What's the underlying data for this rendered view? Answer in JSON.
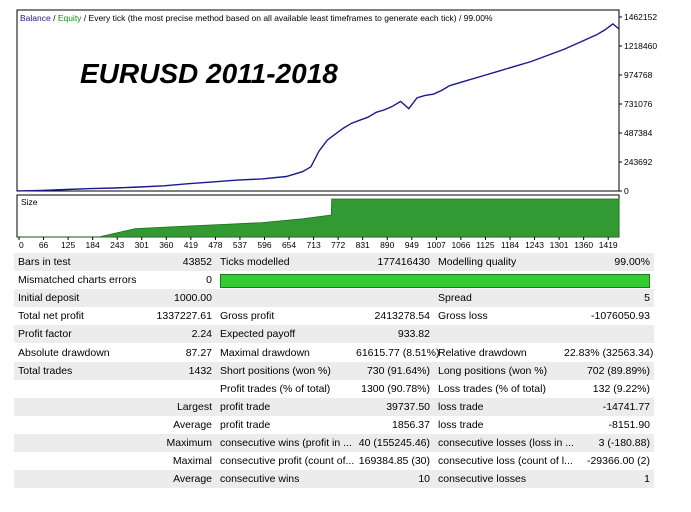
{
  "legend": {
    "balance": "Balance",
    "equity": "Equity",
    "mode": "Every tick (the most precise method based on all available least timeframes to generate each tick)",
    "quality": "99.00%"
  },
  "overlay_title": "EURUSD  2011-2018",
  "colors": {
    "balance": "#1a1a8c",
    "equity": "#1a8c1a",
    "size_fill": "#339933",
    "size_line": "#1f6f1f",
    "quality_bar": "#33cc33",
    "row_alt": "#ececec"
  },
  "chart_data": [
    {
      "type": "line",
      "name": "balance-chart",
      "series": [
        {
          "name": "Balance",
          "x": [
            0,
            60,
            120,
            180,
            240,
            300,
            360,
            420,
            480,
            540,
            600,
            660,
            700,
            720,
            740,
            760,
            780,
            800,
            820,
            840,
            860,
            880,
            900,
            920,
            940,
            960,
            980,
            1000,
            1020,
            1040,
            1060,
            1100,
            1140,
            1180,
            1220,
            1260,
            1300,
            1340,
            1380,
            1420,
            1440,
            1460,
            1475
          ],
          "values": [
            1000,
            5000,
            12000,
            20000,
            25000,
            33000,
            43000,
            60000,
            75000,
            90000,
            100000,
            120000,
            160000,
            200000,
            330000,
            420000,
            470000,
            520000,
            560000,
            585000,
            610000,
            650000,
            670000,
            700000,
            740000,
            680000,
            770000,
            790000,
            800000,
            830000,
            870000,
            910000,
            950000,
            990000,
            1030000,
            1070000,
            1120000,
            1170000,
            1230000,
            1290000,
            1330000,
            1380000,
            1338228
          ]
        }
      ],
      "ylim": [
        0,
        1462152
      ],
      "y_ticks": [
        "1462152",
        "1218460",
        "974768",
        "731076",
        "487384",
        "243692",
        "0"
      ],
      "x_ticks": [
        "0",
        "66",
        "125",
        "184",
        "243",
        "301",
        "360",
        "419",
        "478",
        "537",
        "596",
        "654",
        "713",
        "772",
        "831",
        "890",
        "949",
        "1007",
        "1066",
        "1125",
        "1184",
        "1243",
        "1301",
        "1360",
        "1419"
      ],
      "grid": false
    },
    {
      "type": "area",
      "name": "size-chart",
      "title": "Size",
      "series": [
        {
          "name": "Size",
          "x": [
            0,
            200,
            290,
            400,
            500,
            600,
            700,
            770,
            771,
            1475
          ],
          "values": [
            0,
            0,
            0.22,
            0.28,
            0.33,
            0.38,
            0.48,
            0.58,
            1.0,
            1.0
          ]
        }
      ],
      "ylim": [
        0,
        1
      ]
    }
  ],
  "report": {
    "rows": [
      [
        "Bars in test",
        "43852",
        "Ticks modelled",
        "177416430",
        "Modelling quality",
        "99.00%"
      ],
      [
        "Mismatched charts errors",
        "0",
        "",
        "",
        "",
        ""
      ],
      [
        "Initial deposit",
        "1000.00",
        "",
        "",
        "Spread",
        "5"
      ],
      [
        "Total net profit",
        "1337227.61",
        "Gross profit",
        "2413278.54",
        "Gross loss",
        "-1076050.93"
      ],
      [
        "Profit factor",
        "2.24",
        "Expected payoff",
        "933.82",
        "",
        ""
      ],
      [
        "Absolute drawdown",
        "87.27",
        "Maximal drawdown",
        "61615.77 (8.51%)",
        "Relative drawdown",
        "22.83% (32563.34)"
      ],
      [
        "Total trades",
        "1432",
        "Short positions (won %)",
        "730 (91.64%)",
        "Long positions (won %)",
        "702 (89.89%)"
      ],
      [
        "",
        "",
        "Profit trades (% of total)",
        "1300 (90.78%)",
        "Loss trades (% of total)",
        "132 (9.22%)"
      ],
      [
        "",
        "Largest",
        "profit trade",
        "39737.50",
        "loss trade",
        "-14741.77"
      ],
      [
        "",
        "Average",
        "profit trade",
        "1856.37",
        "loss trade",
        "-8151.90"
      ],
      [
        "",
        "Maximum",
        "consecutive wins (profit in ...",
        "40 (155245.46)",
        "consecutive losses (loss in ...",
        "3 (-180.88)"
      ],
      [
        "",
        "Maximal",
        "consecutive profit (count of...",
        "169384.85 (30)",
        "consecutive loss (count of l...",
        "-29366.00 (2)"
      ],
      [
        "",
        "Average",
        "consecutive wins",
        "10",
        "consecutive losses",
        "1"
      ]
    ]
  }
}
